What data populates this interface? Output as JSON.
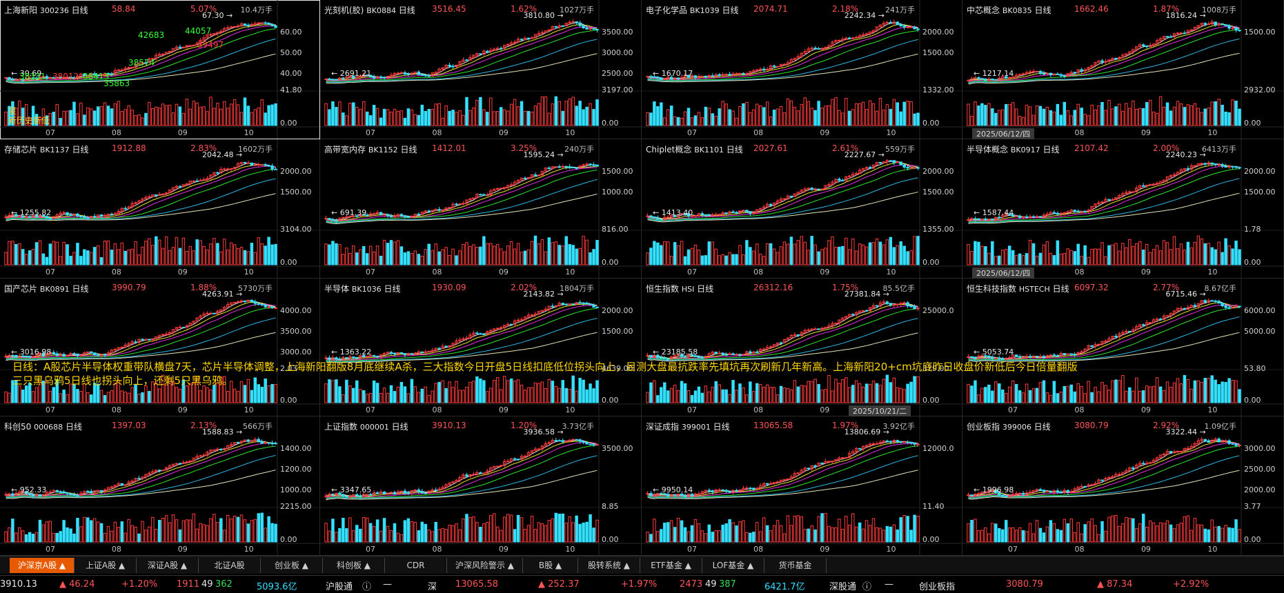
{
  "panels": [
    {
      "name": "上海新阳",
      "code": "300236",
      "period": "日线",
      "price": "58.84",
      "pct": "5.07%",
      "vol": "10.4万手",
      "hi": "67.30",
      "lo": "30.69",
      "ticks": [
        "60.00",
        "50.00",
        "40.00"
      ],
      "vticks": [
        "41.80",
        "0.00"
      ],
      "months": [
        "07",
        "08",
        "09",
        "10"
      ],
      "up": true
    },
    {
      "name": "光刻机(胶)",
      "code": "BK0884",
      "period": "日线",
      "price": "3516.45",
      "pct": "1.62%",
      "vol": "1027万手",
      "hi": "3810.80",
      "lo": "2691.21",
      "ticks": [
        "3500.00",
        "3000.00",
        "2500.00"
      ],
      "vticks": [
        "3197.00",
        "0.00"
      ],
      "months": [
        "07",
        "08",
        "09",
        "10"
      ],
      "up": true
    },
    {
      "name": "电子化学品",
      "code": "BK1039",
      "period": "日线",
      "price": "2074.71",
      "pct": "2.18%",
      "vol": "241万手",
      "hi": "2242.34",
      "lo": "1670.17",
      "ticks": [
        "2000.00",
        "1500.00"
      ],
      "vticks": [
        "1332.00",
        "0.00"
      ],
      "months": [
        "07",
        "08",
        "09",
        "10"
      ],
      "up": true
    },
    {
      "name": "中芯概念",
      "code": "BK0835",
      "period": "日线",
      "price": "1662.46",
      "pct": "1.87%",
      "vol": "1008万手",
      "hi": "1816.24",
      "lo": "1217.14",
      "ticks": [
        "1500.00"
      ],
      "vticks": [
        "2932.00",
        "0.00"
      ],
      "months": [
        "07",
        "08",
        "09",
        "10"
      ],
      "up": true
    },
    {
      "name": "存储芯片",
      "code": "BK1137",
      "period": "日线",
      "price": "1912.88",
      "pct": "2.83%",
      "vol": "1602万手",
      "hi": "2042.48",
      "lo": "1255.82",
      "ticks": [
        "2000.00",
        "1500.00"
      ],
      "vticks": [
        "3104.00",
        "0.00"
      ],
      "months": [
        "07",
        "08",
        "09",
        "10"
      ],
      "up": true
    },
    {
      "name": "高带宽内存",
      "code": "BK1152",
      "period": "日线",
      "price": "1412.01",
      "pct": "3.25%",
      "vol": "240万手",
      "hi": "1595.24",
      "lo": "691.39",
      "ticks": [
        "1500.00",
        "1000.00"
      ],
      "vticks": [
        "816.00",
        "0.00"
      ],
      "months": [
        "07",
        "08",
        "09",
        "10"
      ],
      "up": true
    },
    {
      "name": "Chiplet概念",
      "code": "BK1101",
      "period": "日线",
      "price": "2027.61",
      "pct": "2.61%",
      "vol": "559万手",
      "hi": "2227.67",
      "lo": "1413.40",
      "ticks": [
        "2000.00",
        "1500.00"
      ],
      "vticks": [
        "1355.00",
        "0.00"
      ],
      "months": [
        "07",
        "08",
        "09",
        "10"
      ],
      "up": true
    },
    {
      "name": "半导体概念",
      "code": "BK0917",
      "period": "日线",
      "price": "2107.42",
      "pct": "2.00%",
      "vol": "6413万手",
      "hi": "2240.23",
      "lo": "1587.44",
      "ticks": [
        "2000.00",
        "1500.00"
      ],
      "vticks": [
        "1.78",
        "0.00"
      ],
      "months": [
        "07",
        "08",
        "09",
        "10"
      ],
      "up": true
    },
    {
      "name": "国产芯片",
      "code": "BK0891",
      "period": "日线",
      "price": "3990.79",
      "pct": "1.88%",
      "vol": "5730万手",
      "hi": "4263.91",
      "lo": "3016.98",
      "ticks": [
        "4000.00",
        "3500.00",
        "3000.00"
      ],
      "vticks": [
        "2.03",
        "0.00"
      ],
      "months": [
        "07",
        "08",
        "09",
        "10"
      ],
      "up": true
    },
    {
      "name": "半导体",
      "code": "BK1036",
      "period": "日线",
      "price": "1930.09",
      "pct": "2.02%",
      "vol": "1804万手",
      "hi": "2143.82",
      "lo": "1363.22",
      "ticks": [
        "2000.00",
        "1500.00"
      ],
      "vticks": [
        "4639.00",
        "0.00"
      ],
      "months": [
        "07",
        "08",
        "09",
        "10"
      ],
      "up": true
    },
    {
      "name": "恒生指数",
      "code": "HSI",
      "period": "日线",
      "price": "26312.16",
      "pct": "1.75%",
      "vol": "85.5亿手",
      "hi": "27381.84",
      "lo": "23185.58",
      "ticks": [
        "25000.0"
      ],
      "vticks": [
        "379.00",
        "0.00"
      ],
      "months": [
        "07",
        "08",
        "09",
        "10"
      ],
      "up": true
    },
    {
      "name": "恒生科技指数",
      "code": "HSTECH",
      "period": "日线",
      "price": "6097.32",
      "pct": "2.77%",
      "vol": "8.67亿手",
      "hi": "6715.46",
      "lo": "5053.74",
      "ticks": [
        "6000.00",
        "5000.00"
      ],
      "vticks": [
        "53.80",
        "0.00"
      ],
      "months": [
        "07",
        "08",
        "09",
        "10"
      ],
      "up": true
    },
    {
      "name": "科创50",
      "code": "000688",
      "period": "日线",
      "price": "1397.03",
      "pct": "2.13%",
      "vol": "566万手",
      "hi": "1588.83",
      "lo": "952.33",
      "ticks": [
        "1400.00",
        "1200.00",
        "1000.00"
      ],
      "vticks": [
        "2215.00",
        "0.00"
      ],
      "months": [
        "07",
        "08",
        "09",
        "10"
      ],
      "up": true
    },
    {
      "name": "上证指数",
      "code": "000001",
      "period": "日线",
      "price": "3910.13",
      "pct": "1.20%",
      "vol": "3.73亿手",
      "hi": "3936.58",
      "lo": "3347.65",
      "ticks": [
        "3500.00"
      ],
      "vticks": [
        "8.85",
        "0.00"
      ],
      "months": [
        "07",
        "08",
        "09",
        "10"
      ],
      "up": true
    },
    {
      "name": "深证成指",
      "code": "399001",
      "period": "日线",
      "price": "13065.58",
      "pct": "1.97%",
      "vol": "3.92亿手",
      "hi": "13806.69",
      "lo": "9950.14",
      "ticks": [
        "12000.0"
      ],
      "vticks": [
        "11.40",
        "0.00"
      ],
      "months": [
        "07",
        "08",
        "09",
        "10"
      ],
      "up": true
    },
    {
      "name": "创业板指",
      "code": "399006",
      "period": "日线",
      "price": "3080.79",
      "pct": "2.92%",
      "vol": "1.09亿手",
      "hi": "3322.44",
      "lo": "1996.98",
      "ticks": [
        "3000.00",
        "2500.00",
        "2000.00"
      ],
      "vticks": [
        "3.77",
        "0.00"
      ],
      "months": [
        "07",
        "08",
        "09",
        "10"
      ],
      "up": true
    }
  ],
  "date_tags": [
    "2025/06/12/四",
    "2025/06/12/四",
    "2025/10/21/二"
  ],
  "panel0_extra": {
    "labels": [
      "42683",
      "44057",
      "39497",
      "38331",
      "38012",
      "38413",
      "38574",
      "35863"
    ],
    "tag1": "星",
    "tag2": "新历史新低"
  },
  "note": {
    "line1": "日线：A股芯片半导体权重带队横盘7天，芯片半导体调整，上海新阳翻版8月底继续A杀，三大指数今日开盘5日线扣底低位拐头向上，目测大盘最抗跌率先填坑再次刷新几年新高。上海新阳20+cm坑底昨日收盘价新低后今日倍量翻版",
    "line2": "三只黑乌鸦5日线也拐头向上，还剩5只黑乌鸦。"
  },
  "tabs": [
    "沪深京A股 ▲",
    "上证A股 ▲",
    "深证A股 ▲",
    "北证A股",
    "创业板 ▲",
    "科创板 ▲",
    "CDR",
    "沪深风险警示 ▲",
    "B股 ▲",
    "股转系统 ▲",
    "ETF基金 ▲",
    "LOF基金 ▲",
    "货币基金"
  ],
  "status": {
    "sh_price": "3910.13",
    "sh_chg": "▲ 46.24",
    "sh_pct": "+1.20%",
    "sh_up": "1911",
    "sh_flat": "49",
    "sh_down": "362",
    "sh_amt": "5093.6亿",
    "hgt_label": "沪股通",
    "hgt_val": "—",
    "sz_label": "深",
    "sz_price": "13065.58",
    "sz_chg": "▲ 252.37",
    "sz_pct": "+1.97%",
    "sz_up": "2473",
    "sz_flat": "49",
    "sz_down": "387",
    "sz_amt": "6421.7亿",
    "sgt_label": "深股通",
    "sgt_val": "—",
    "cyb_label": "创业板指",
    "cyb_price": "3080.79",
    "cyb_chg": "▲ 87.34",
    "cyb_pct": "+2.92%"
  }
}
